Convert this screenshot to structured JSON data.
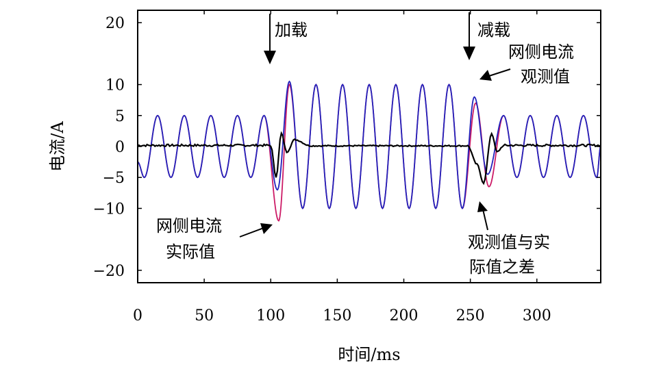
{
  "chart_data": {
    "type": "line",
    "title": "",
    "xlabel": "时间/ms",
    "ylabel": "电流/A",
    "xlim": [
      0,
      348
    ],
    "ylim": [
      -22,
      22
    ],
    "xticks": [
      0,
      50,
      100,
      150,
      200,
      250,
      300
    ],
    "yticks": [
      20,
      10,
      5,
      0,
      -5,
      -10,
      -20
    ],
    "ytick_labels": [
      "20",
      "10",
      "5",
      "0",
      "−5",
      "−10",
      "−20"
    ],
    "grid": false,
    "signal_model": {
      "frequency_hz": 50,
      "amplitude_before_load": 5,
      "amplitude_loaded": 10,
      "load_time_ms": 100,
      "unload_time_ms": 250
    },
    "series": [
      {
        "color": "#cc1a66",
        "peaks": [
          [
            15,
            5
          ],
          [
            25,
            -5
          ],
          [
            35,
            5
          ],
          [
            45,
            -5
          ],
          [
            55,
            5
          ],
          [
            65,
            -5
          ],
          [
            75,
            5
          ],
          [
            85,
            -5
          ],
          [
            95,
            5
          ],
          [
            106,
            -12
          ],
          [
            114,
            10
          ],
          [
            124,
            -10
          ],
          [
            134,
            10
          ],
          [
            144,
            -10
          ],
          [
            154,
            10
          ],
          [
            164,
            -10
          ],
          [
            174,
            10
          ],
          [
            184,
            -10
          ],
          [
            194,
            10
          ],
          [
            204,
            -10
          ],
          [
            214,
            10
          ],
          [
            224,
            -10
          ],
          [
            234,
            10
          ],
          [
            244,
            -10
          ],
          [
            254,
            7
          ],
          [
            264,
            -6.5
          ],
          [
            275,
            5
          ],
          [
            285,
            -5
          ],
          [
            295,
            5
          ],
          [
            305,
            -5
          ],
          [
            315,
            5
          ],
          [
            325,
            -5
          ],
          [
            335,
            5
          ],
          [
            345,
            -5
          ]
        ]
      },
      {
        "color": "#2222bb",
        "peaks": [
          [
            15,
            5
          ],
          [
            25,
            -5
          ],
          [
            35,
            5
          ],
          [
            45,
            -5
          ],
          [
            55,
            5
          ],
          [
            65,
            -5
          ],
          [
            75,
            5
          ],
          [
            85,
            -5
          ],
          [
            95,
            5
          ],
          [
            105,
            -7
          ],
          [
            114,
            10.5
          ],
          [
            124,
            -10
          ],
          [
            134,
            10
          ],
          [
            144,
            -10
          ],
          [
            154,
            10
          ],
          [
            164,
            -10
          ],
          [
            174,
            10
          ],
          [
            184,
            -10
          ],
          [
            194,
            10
          ],
          [
            204,
            -10
          ],
          [
            214,
            10
          ],
          [
            224,
            -10
          ],
          [
            234,
            10
          ],
          [
            244,
            -10
          ],
          [
            253,
            8
          ],
          [
            263,
            -4.5
          ],
          [
            275,
            5
          ],
          [
            285,
            -5
          ],
          [
            295,
            5
          ],
          [
            305,
            -5
          ],
          [
            315,
            5
          ],
          [
            325,
            -5
          ],
          [
            335,
            5
          ],
          [
            345,
            -5
          ]
        ]
      },
      {
        "color": "#000000",
        "peaks": [
          [
            100,
            0
          ],
          [
            104,
            -5
          ],
          [
            108,
            2
          ],
          [
            112,
            -1
          ],
          [
            118,
            1
          ],
          [
            130,
            0
          ],
          [
            248,
            0
          ],
          [
            255,
            -3
          ],
          [
            260,
            -6
          ],
          [
            266,
            2
          ],
          [
            270,
            -1
          ],
          [
            275,
            0
          ]
        ]
      }
    ],
    "annotations": [
      {
        "text": "加载",
        "x": 100
      },
      {
        "text": "减载",
        "x": 250
      },
      {
        "text_lines": [
          "网侧电流",
          "观测值"
        ]
      },
      {
        "text_lines": [
          "网侧电流",
          "实际值"
        ]
      },
      {
        "text_lines": [
          "观测值与实",
          "际值之差"
        ]
      }
    ]
  }
}
